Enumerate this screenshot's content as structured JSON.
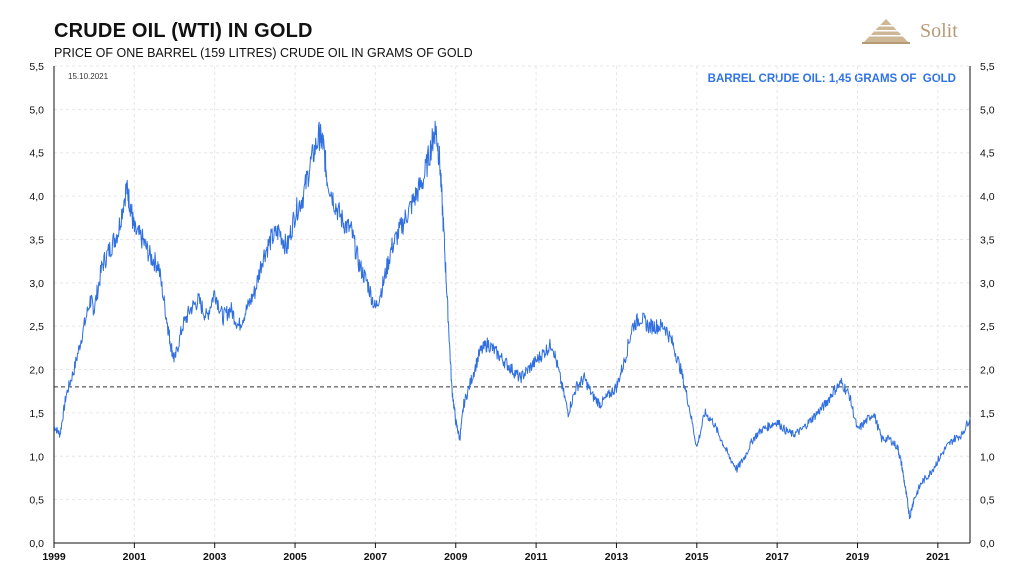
{
  "logo": {
    "text": "Solit"
  },
  "chart_data": {
    "type": "line",
    "title": "CRUDE OIL (WTI) IN GOLD",
    "subtitle": "PRICE OF ONE BARREL (159 LITRES) CRUDE OIL IN GRAMS OF GOLD",
    "date_label": "15.10.2021",
    "annotation": "BARREL CRUDE OIL: 1,45 GRAMS OF  GOLD",
    "xlabel": "",
    "ylabel": "",
    "xlim": [
      1999.0,
      2021.8
    ],
    "ylim": [
      0,
      5.5
    ],
    "y_ticks": [
      "0,0",
      "0,5",
      "1,0",
      "1,5",
      "2,0",
      "2,5",
      "3,0",
      "3,5",
      "4,0",
      "4,5",
      "5,0",
      "5,5"
    ],
    "x_ticks": [
      "1999",
      "2001",
      "2003",
      "2005",
      "2007",
      "2009",
      "2011",
      "2013",
      "2015",
      "2017",
      "2019",
      "2021"
    ],
    "grid": true,
    "reference_line": {
      "value": 1.8,
      "style": "dashed"
    },
    "series": [
      {
        "color": "#2f6fe0",
        "x": [
          1999.0,
          1999.15,
          1999.3,
          1999.5,
          1999.7,
          1999.9,
          2000.0,
          2000.2,
          2000.4,
          2000.6,
          2000.8,
          2000.9,
          2001.0,
          2001.2,
          2001.4,
          2001.6,
          2001.8,
          2001.9,
          2002.0,
          2002.2,
          2002.4,
          2002.6,
          2002.8,
          2003.0,
          2003.2,
          2003.4,
          2003.6,
          2003.8,
          2004.0,
          2004.2,
          2004.4,
          2004.6,
          2004.8,
          2005.0,
          2005.2,
          2005.4,
          2005.6,
          2005.7,
          2005.8,
          2006.0,
          2006.2,
          2006.4,
          2006.6,
          2006.8,
          2007.0,
          2007.2,
          2007.4,
          2007.6,
          2007.8,
          2008.0,
          2008.2,
          2008.4,
          2008.5,
          2008.6,
          2008.7,
          2008.8,
          2008.9,
          2009.0,
          2009.1,
          2009.2,
          2009.4,
          2009.6,
          2009.8,
          2010.0,
          2010.2,
          2010.4,
          2010.6,
          2010.8,
          2011.0,
          2011.2,
          2011.4,
          2011.6,
          2011.8,
          2012.0,
          2012.2,
          2012.4,
          2012.6,
          2012.8,
          2013.0,
          2013.2,
          2013.4,
          2013.6,
          2013.8,
          2014.0,
          2014.2,
          2014.4,
          2014.6,
          2014.8,
          2015.0,
          2015.2,
          2015.4,
          2015.6,
          2015.8,
          2016.0,
          2016.2,
          2016.4,
          2016.6,
          2016.8,
          2017.0,
          2017.2,
          2017.4,
          2017.6,
          2017.8,
          2018.0,
          2018.2,
          2018.4,
          2018.6,
          2018.8,
          2019.0,
          2019.2,
          2019.4,
          2019.6,
          2019.8,
          2020.0,
          2020.1,
          2020.2,
          2020.3,
          2020.4,
          2020.6,
          2020.8,
          2021.0,
          2021.2,
          2021.4,
          2021.6,
          2021.8
        ],
        "values": [
          1.35,
          1.25,
          1.7,
          2.0,
          2.4,
          2.8,
          2.7,
          3.2,
          3.4,
          3.6,
          4.1,
          3.9,
          3.6,
          3.5,
          3.3,
          3.2,
          2.6,
          2.3,
          2.1,
          2.5,
          2.7,
          2.8,
          2.6,
          2.9,
          2.6,
          2.7,
          2.5,
          2.7,
          2.9,
          3.3,
          3.5,
          3.6,
          3.4,
          3.8,
          4.0,
          4.4,
          4.7,
          4.6,
          4.2,
          3.9,
          3.7,
          3.6,
          3.2,
          3.0,
          2.7,
          3.0,
          3.4,
          3.6,
          3.8,
          4.0,
          4.2,
          4.6,
          4.8,
          4.4,
          3.6,
          2.7,
          1.8,
          1.4,
          1.2,
          1.6,
          1.9,
          2.2,
          2.3,
          2.2,
          2.1,
          2.0,
          1.9,
          2.0,
          2.1,
          2.2,
          2.3,
          1.9,
          1.5,
          1.8,
          1.9,
          1.7,
          1.6,
          1.7,
          1.8,
          2.1,
          2.5,
          2.6,
          2.5,
          2.5,
          2.5,
          2.3,
          2.0,
          1.6,
          1.1,
          1.5,
          1.4,
          1.2,
          1.0,
          0.85,
          1.0,
          1.2,
          1.3,
          1.35,
          1.4,
          1.3,
          1.25,
          1.3,
          1.4,
          1.5,
          1.6,
          1.75,
          1.85,
          1.7,
          1.3,
          1.4,
          1.5,
          1.2,
          1.2,
          1.1,
          0.9,
          0.6,
          0.3,
          0.5,
          0.7,
          0.8,
          0.95,
          1.1,
          1.2,
          1.25,
          1.45
        ]
      }
    ]
  }
}
